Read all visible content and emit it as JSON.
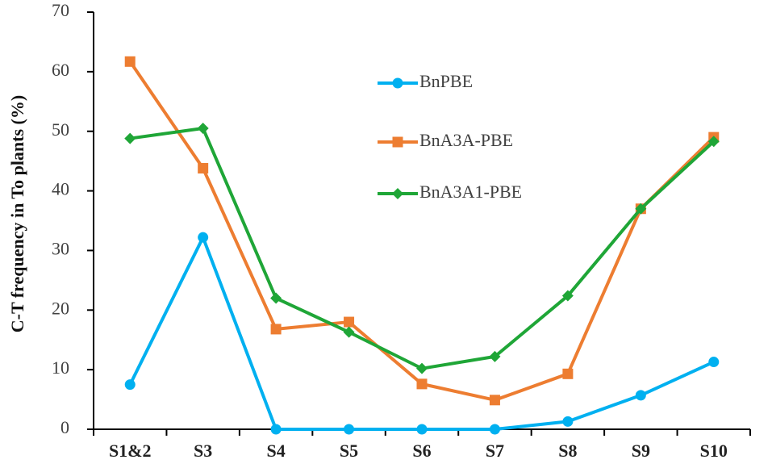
{
  "chart_data": {
    "type": "line",
    "title": "",
    "xlabel": "",
    "ylabel": "C-T frequency in To plants (%)",
    "categories": [
      "S1&2",
      "S3",
      "S4",
      "S5",
      "S6",
      "S7",
      "S8",
      "S9",
      "S10"
    ],
    "ylim": [
      0,
      70
    ],
    "yticks": [
      0,
      10,
      20,
      30,
      40,
      50,
      60,
      70
    ],
    "grid": false,
    "legend_position": "center-right",
    "series": [
      {
        "name": "BnPBE",
        "color": "#00B0F0",
        "marker": "circle",
        "values": [
          7.5,
          32.2,
          0,
          0,
          0,
          0,
          1.3,
          5.7,
          11.3
        ]
      },
      {
        "name": "BnA3A-PBE",
        "color": "#ED7D31",
        "marker": "square",
        "values": [
          61.7,
          43.8,
          16.8,
          18.0,
          7.6,
          4.9,
          9.3,
          37.0,
          49.0
        ]
      },
      {
        "name": "BnA3A1-PBE",
        "color": "#1FA637",
        "marker": "diamond",
        "values": [
          48.8,
          50.5,
          22.0,
          16.3,
          10.2,
          12.2,
          22.4,
          37.0,
          48.3
        ]
      }
    ]
  }
}
